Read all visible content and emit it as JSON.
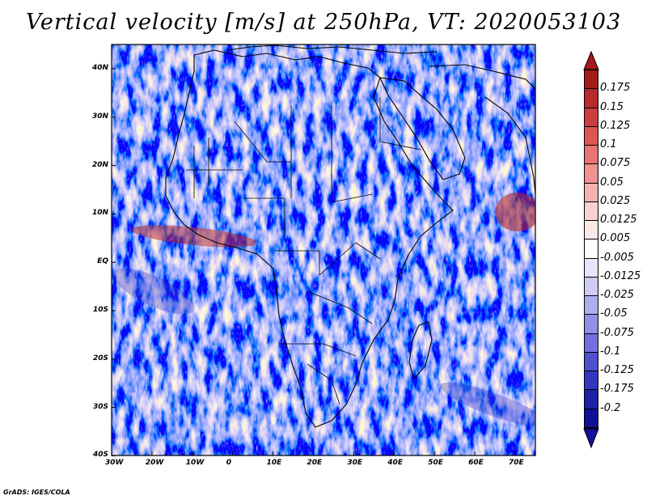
{
  "title": "Vertical velocity [m/s] at 250hPa, VT: 2020053103",
  "credit": "GrADS: IGES/COLA",
  "map": {
    "lon_labels": [
      "30W",
      "20W",
      "10W",
      "0",
      "10E",
      "20E",
      "30E",
      "40E",
      "50E",
      "60E",
      "70E"
    ],
    "lat_labels": [
      "40N",
      "30N",
      "20N",
      "10N",
      "EQ",
      "10S",
      "20S",
      "30S",
      "40S"
    ]
  },
  "colorbar": {
    "labels": [
      "0.175",
      "0.15",
      "0.125",
      "0.1",
      "0.075",
      "0.05",
      "0.025",
      "0.0125",
      "0.005",
      "-0.005",
      "-0.0125",
      "-0.025",
      "-0.05",
      "-0.075",
      "-0.1",
      "-0.125",
      "-0.175",
      "-0.2"
    ],
    "colors": [
      "#a51a1a",
      "#b92a2a",
      "#cc3e3e",
      "#dd5555",
      "#e87373",
      "#f09292",
      "#f6b2b2",
      "#fad0d0",
      "#fde8e8",
      "#ffffff",
      "#e6e6fb",
      "#ccccf4",
      "#aeaeee",
      "#9090e6",
      "#7070dc",
      "#5050d0",
      "#3535c0",
      "#2020aa",
      "#10109a"
    ]
  }
}
